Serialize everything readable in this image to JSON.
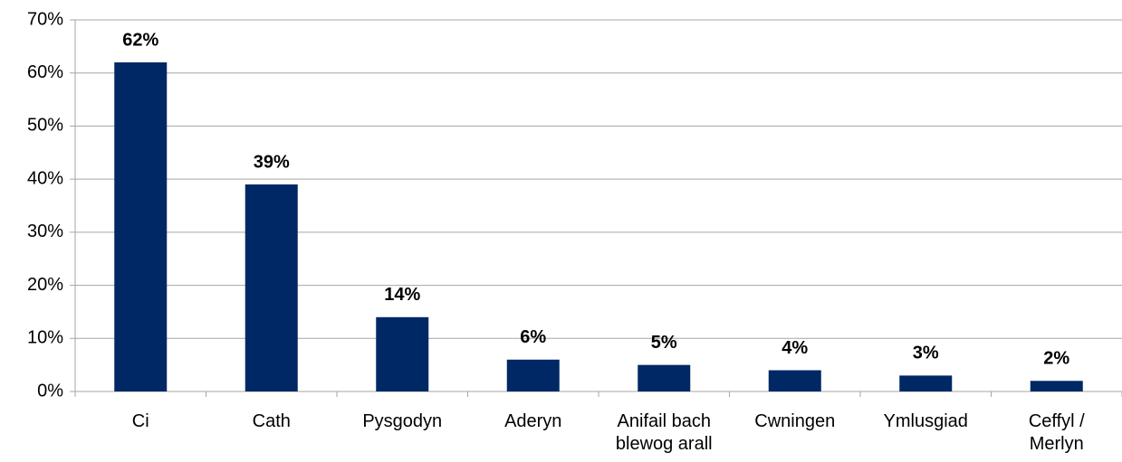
{
  "chart_data": {
    "type": "bar",
    "categories": [
      "Ci",
      "Cath",
      "Pysgodyn",
      "Aderyn",
      "Anifail bach blewog arall",
      "Cwningen",
      "Ymlusgiad",
      "Ceffyl / Merlyn"
    ],
    "values": [
      62,
      39,
      14,
      6,
      5,
      4,
      3,
      2
    ],
    "value_labels": [
      "62%",
      "39%",
      "14%",
      "6%",
      "5%",
      "4%",
      "3%",
      "2%"
    ],
    "color": "#002864",
    "ylim": [
      0,
      70
    ],
    "yticks": [
      {
        "value": 0,
        "label": "0%"
      },
      {
        "value": 10,
        "label": "10%"
      },
      {
        "value": 20,
        "label": "20%"
      },
      {
        "value": 30,
        "label": "30%"
      },
      {
        "value": 40,
        "label": "40%"
      },
      {
        "value": 50,
        "label": "50%"
      },
      {
        "value": 60,
        "label": "60%"
      },
      {
        "value": 70,
        "label": "70%"
      }
    ],
    "grid": true
  }
}
